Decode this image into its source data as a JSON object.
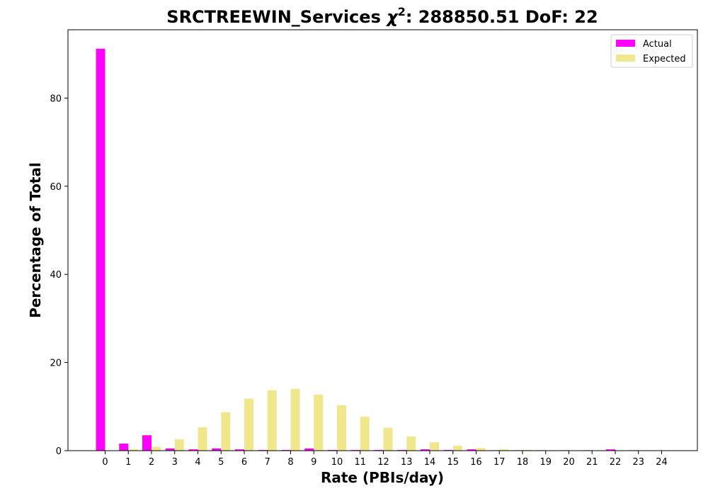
{
  "chart_data": {
    "type": "bar",
    "title": {
      "prefix": "SRCTREEWIN_Services ",
      "symbol": "χ",
      "superscript": "2",
      "suffix": ": 288850.51 DoF: 22"
    },
    "xlabel": "Rate (PBIs/day)",
    "ylabel": "Percentage of Total",
    "categories": [
      "0",
      "1",
      "2",
      "3",
      "4",
      "5",
      "6",
      "7",
      "8",
      "9",
      "10",
      "11",
      "12",
      "13",
      "14",
      "15",
      "16",
      "17",
      "18",
      "19",
      "20",
      "21",
      "22",
      "23",
      "24"
    ],
    "ylim": [
      0,
      95.5
    ],
    "yticks": [
      "0",
      "20",
      "40",
      "60",
      "80"
    ],
    "legend_position": "top-right",
    "series": [
      {
        "name": "Actual",
        "color": "#ff00ff",
        "values": [
          91.2,
          1.6,
          3.5,
          0.5,
          0.3,
          0.5,
          0.3,
          0.15,
          0.15,
          0.5,
          0.15,
          0.15,
          0.15,
          0.15,
          0.3,
          0.15,
          0.3,
          0.1,
          0.1,
          0.1,
          0.1,
          0.1,
          0.3,
          0.1,
          0.0
        ]
      },
      {
        "name": "Expected",
        "color": "#f0e68c",
        "values": [
          0.0,
          0.3,
          0.9,
          2.6,
          5.3,
          8.7,
          11.8,
          13.7,
          14.0,
          12.7,
          10.3,
          7.7,
          5.2,
          3.2,
          1.9,
          1.1,
          0.6,
          0.3,
          0.15,
          0.1,
          0.05,
          0.02,
          0.01,
          0.0,
          0.0
        ]
      }
    ]
  }
}
